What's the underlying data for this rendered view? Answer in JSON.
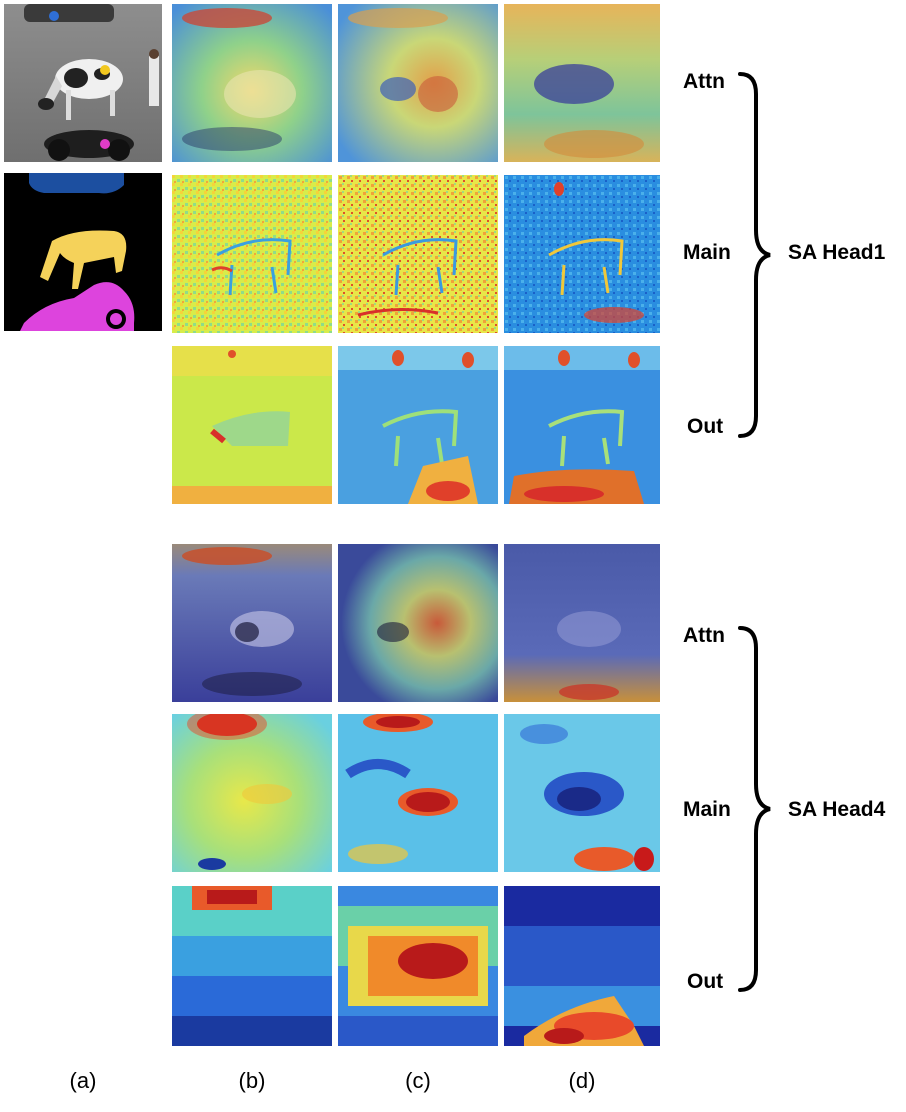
{
  "figure": {
    "column_labels": [
      "(a)",
      "(b)",
      "(c)",
      "(d)"
    ],
    "groups": [
      {
        "head_label": "SA Head1",
        "row_labels": [
          "Attn",
          "Main",
          "Out"
        ]
      },
      {
        "head_label": "SA Head4",
        "row_labels": [
          "Attn",
          "Main",
          "Out"
        ]
      }
    ],
    "point_colors": {
      "blue": "#2f6fd6",
      "yellow": "#f2c81f",
      "magenta": "#e03cc8"
    },
    "mask_colors": {
      "background": "#000000",
      "car": "#1c4fa0",
      "cow": "#f5d25a",
      "motorbike": "#dd44dd"
    }
  }
}
